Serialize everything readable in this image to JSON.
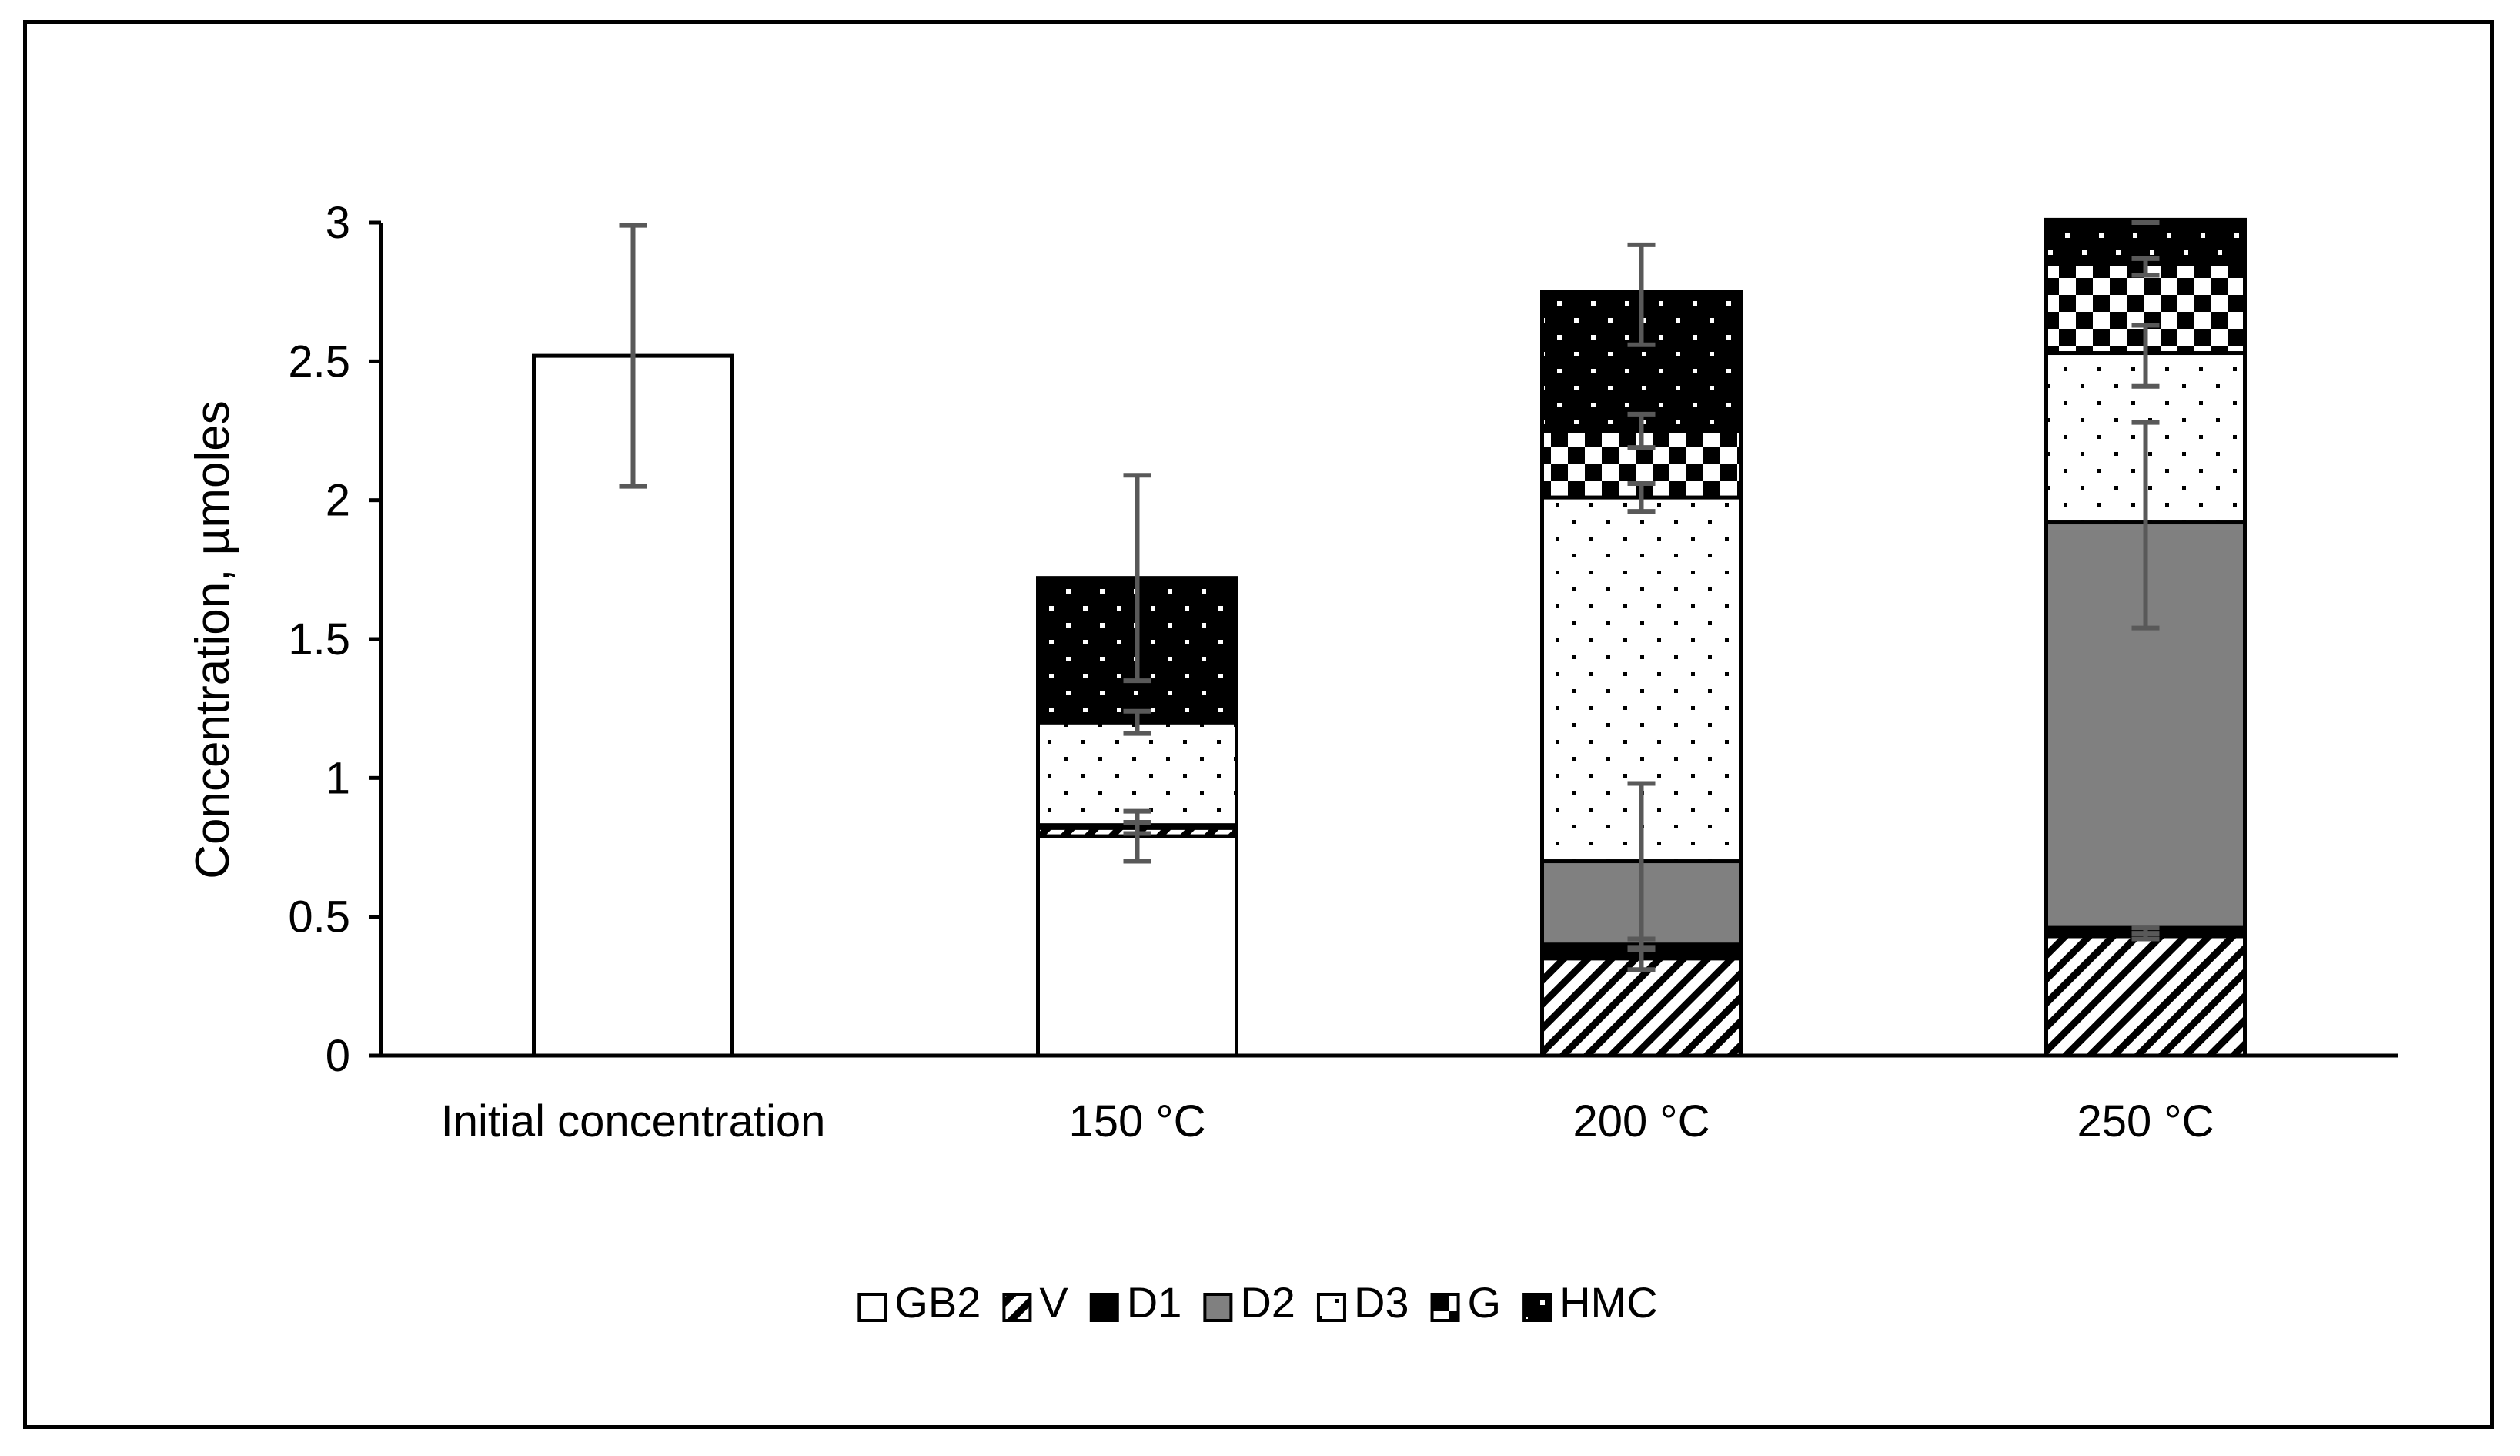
{
  "chart_data": {
    "type": "bar",
    "stacked": true,
    "title": "",
    "xlabel": "",
    "ylabel": "Concentration, µmoles",
    "ylim": [
      0,
      3
    ],
    "yticks": [
      "0",
      "0.5",
      "1",
      "1.5",
      "2",
      "2.5",
      "3"
    ],
    "ytick_values": [
      0,
      0.5,
      1,
      1.5,
      2,
      2.5,
      3
    ],
    "categories": [
      "Initial concentration",
      "150 °C",
      "200 °C",
      "250 °C"
    ],
    "legend_position": "bottom",
    "series": [
      {
        "name": "GB2",
        "pattern": "white",
        "values": [
          2.52,
          0.79,
          0,
          0
        ],
        "error_center": [
          2.52,
          0.79,
          null,
          null
        ],
        "error": [
          0.47,
          0.09,
          null,
          null
        ]
      },
      {
        "name": "V",
        "pattern": "diagonal",
        "values": [
          0,
          0.03,
          0.35,
          0.43
        ],
        "error_center": [
          null,
          0.82,
          0.35,
          0.43
        ],
        "error": [
          null,
          0.02,
          0.04,
          0.01
        ]
      },
      {
        "name": "D1",
        "pattern": "black",
        "values": [
          0,
          0.01,
          0.05,
          0.03
        ],
        "error_center": [
          null,
          null,
          0.4,
          0.45
        ],
        "error": [
          null,
          null,
          0.02,
          0.01
        ]
      },
      {
        "name": "D2",
        "pattern": "gray",
        "values": [
          0,
          0,
          0.3,
          1.46
        ],
        "error_center": [
          null,
          null,
          0.7,
          1.91
        ],
        "error": [
          null,
          null,
          0.28,
          0.37
        ]
      },
      {
        "name": "D3",
        "pattern": "dots",
        "values": [
          0,
          0.37,
          1.31,
          0.61
        ],
        "error_center": [
          null,
          1.2,
          2.01,
          2.52
        ],
        "error": [
          null,
          0.04,
          0.05,
          0.11
        ]
      },
      {
        "name": "G",
        "pattern": "checker",
        "values": [
          0,
          0,
          0.24,
          0.32
        ],
        "error_center": [
          null,
          null,
          2.25,
          2.84
        ],
        "error": [
          null,
          null,
          0.06,
          0.03
        ]
      },
      {
        "name": "HMC",
        "pattern": "dark-dots",
        "values": [
          0,
          0.52,
          0.5,
          0.16
        ],
        "error_center": [
          null,
          1.72,
          2.74,
          3.0
        ],
        "error": [
          null,
          0.37,
          0.18,
          0.0
        ]
      }
    ]
  }
}
